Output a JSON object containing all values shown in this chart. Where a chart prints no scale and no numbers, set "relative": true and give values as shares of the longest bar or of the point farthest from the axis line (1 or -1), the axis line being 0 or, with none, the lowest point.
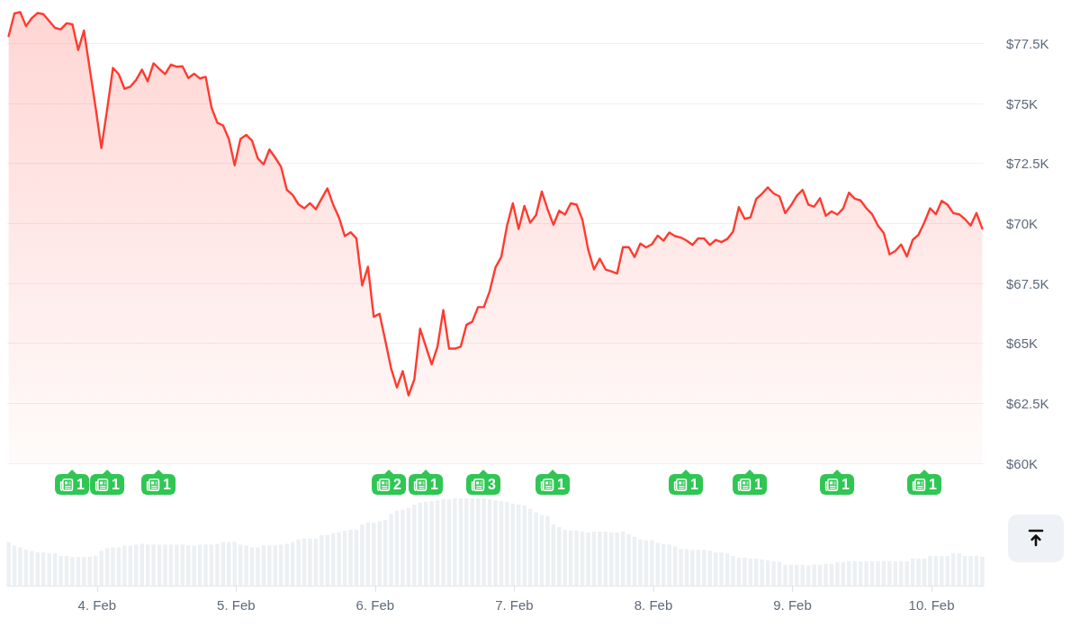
{
  "chart_data": [
    {
      "type": "area",
      "color": "#ff3b30",
      "x": [
        "--02-03T08:45",
        "--02-03T09:45",
        "--02-03T10:45",
        "--02-03T11:45",
        "--02-03T12:45",
        "--02-03T13:45",
        "--02-03T14:45",
        "--02-03T15:45",
        "--02-03T16:45",
        "--02-03T17:45",
        "--02-03T18:45",
        "--02-03T19:45",
        "--02-03T20:45",
        "--02-03T21:45",
        "--02-03T22:45",
        "--02-03T23:45",
        "--02-04T00:45",
        "--02-04T01:45",
        "--02-04T02:45",
        "--02-04T03:45",
        "--02-04T04:45",
        "--02-04T05:45",
        "--02-04T06:45",
        "--02-04T07:45",
        "--02-04T08:45",
        "--02-04T09:45",
        "--02-04T10:45",
        "--02-04T11:45",
        "--02-04T12:45",
        "--02-04T13:45",
        "--02-04T14:45",
        "--02-04T15:45",
        "--02-04T16:45",
        "--02-04T17:45",
        "--02-04T18:45",
        "--02-04T19:45",
        "--02-04T20:45",
        "--02-04T21:45",
        "--02-04T22:45",
        "--02-04T23:45",
        "--02-05T00:45",
        "--02-05T01:45",
        "--02-05T02:45",
        "--02-05T03:45",
        "--02-05T04:45",
        "--02-05T05:45",
        "--02-05T06:45",
        "--02-05T07:45",
        "--02-05T08:45",
        "--02-05T09:45",
        "--02-05T10:45",
        "--02-05T11:45",
        "--02-05T12:45",
        "--02-05T13:45",
        "--02-05T14:45",
        "--02-05T15:45",
        "--02-05T16:45",
        "--02-05T17:45",
        "--02-05T18:45",
        "--02-05T19:45",
        "--02-05T20:45",
        "--02-05T21:45",
        "--02-05T22:45",
        "--02-05T23:45",
        "--02-06T00:45",
        "--02-06T01:45",
        "--02-06T02:45",
        "--02-06T03:45",
        "--02-06T04:45",
        "--02-06T05:45",
        "--02-06T06:45",
        "--02-06T07:45",
        "--02-06T08:45",
        "--02-06T09:45",
        "--02-06T10:45",
        "--02-06T11:45",
        "--02-06T12:45",
        "--02-06T13:45",
        "--02-06T14:45",
        "--02-06T15:45",
        "--02-06T16:45",
        "--02-06T17:45",
        "--02-06T18:45",
        "--02-06T19:45",
        "--02-06T20:45",
        "--02-06T21:45",
        "--02-06T22:45",
        "--02-06T23:45",
        "--02-07T00:45",
        "--02-07T01:45",
        "--02-07T02:45",
        "--02-07T03:45",
        "--02-07T04:45",
        "--02-07T05:45",
        "--02-07T06:45",
        "--02-07T07:45",
        "--02-07T08:45",
        "--02-07T09:45",
        "--02-07T10:45",
        "--02-07T11:45",
        "--02-07T12:45",
        "--02-07T13:45",
        "--02-07T14:45",
        "--02-07T15:45",
        "--02-07T16:45",
        "--02-07T17:45",
        "--02-07T18:45",
        "--02-07T19:45",
        "--02-07T20:45",
        "--02-07T21:45",
        "--02-07T22:45",
        "--02-07T23:45",
        "--02-08T00:45",
        "--02-08T01:45",
        "--02-08T02:45",
        "--02-08T03:45",
        "--02-08T04:45",
        "--02-08T05:45",
        "--02-08T06:45",
        "--02-08T07:45",
        "--02-08T08:45",
        "--02-08T09:45",
        "--02-08T10:45",
        "--02-08T11:45",
        "--02-08T12:45",
        "--02-08T13:45",
        "--02-08T14:45",
        "--02-08T15:45",
        "--02-08T16:45",
        "--02-08T17:45",
        "--02-08T18:45",
        "--02-08T19:45",
        "--02-08T20:45",
        "--02-08T21:45",
        "--02-08T22:45",
        "--02-08T23:45",
        "--02-09T00:45",
        "--02-09T01:45",
        "--02-09T02:45",
        "--02-09T03:45",
        "--02-09T04:45",
        "--02-09T05:45",
        "--02-09T06:45",
        "--02-09T07:45",
        "--02-09T08:45",
        "--02-09T09:45",
        "--02-09T10:45",
        "--02-09T11:45",
        "--02-09T12:45",
        "--02-09T13:45",
        "--02-09T14:45",
        "--02-09T15:45",
        "--02-09T16:45",
        "--02-09T17:45",
        "--02-09T18:45",
        "--02-09T19:45",
        "--02-09T20:45",
        "--02-09T21:45",
        "--02-09T22:45",
        "--02-09T23:45",
        "--02-10T00:45",
        "--02-10T01:45",
        "--02-10T02:45",
        "--02-10T03:45",
        "--02-10T04:45",
        "--02-10T05:45",
        "--02-10T06:45",
        "--02-10T07:45",
        "--02-10T08:45"
      ],
      "values": [
        77810,
        78750,
        78810,
        78220,
        78560,
        78770,
        78720,
        78430,
        78150,
        78090,
        78340,
        78300,
        77230,
        78040,
        76430,
        74840,
        73140,
        74760,
        76480,
        76220,
        75610,
        75700,
        75980,
        76410,
        75920,
        76670,
        76440,
        76220,
        76620,
        76530,
        76550,
        76060,
        76240,
        76040,
        76110,
        74830,
        74200,
        74080,
        73520,
        72420,
        73520,
        73690,
        73450,
        72710,
        72460,
        73080,
        72740,
        72360,
        71400,
        71190,
        70800,
        70630,
        70840,
        70590,
        71030,
        71460,
        70780,
        70250,
        69470,
        69630,
        69380,
        67410,
        68190,
        66110,
        66230,
        65110,
        63950,
        63160,
        63840,
        62830,
        63490,
        65610,
        64860,
        64120,
        64860,
        66390,
        64780,
        64780,
        64860,
        65770,
        65900,
        66510,
        66510,
        67170,
        68160,
        68600,
        69910,
        70840,
        69770,
        70730,
        70030,
        70340,
        71330,
        70590,
        69940,
        70530,
        70370,
        70840,
        70780,
        70160,
        68910,
        68080,
        68530,
        68080,
        68000,
        67910,
        69010,
        69010,
        68600,
        69160,
        69000,
        69130,
        69490,
        69280,
        69620,
        69470,
        69410,
        69280,
        69100,
        69380,
        69370,
        69100,
        69310,
        69220,
        69350,
        69660,
        70680,
        70190,
        70250,
        71020,
        71240,
        71500,
        71250,
        71130,
        70430,
        70750,
        71150,
        71400,
        70780,
        70700,
        71050,
        70320,
        70500,
        70370,
        70620,
        71280,
        71030,
        70960,
        70630,
        70380,
        69910,
        69600,
        68710,
        68850,
        69120,
        68620,
        69310,
        69530,
        70030,
        70630,
        70380,
        70940,
        70780,
        70430,
        70380,
        70180,
        69910,
        70430,
        69780
      ],
      "xlim": [
        "--02-03T08:30",
        "--02-10T09:00"
      ],
      "ylim": [
        60000,
        79200
      ],
      "yticks": [
        {
          "value": 60000,
          "label": "$60K"
        },
        {
          "value": 62500,
          "label": "$62.5K"
        },
        {
          "value": 65000,
          "label": "$65K"
        },
        {
          "value": 67500,
          "label": "$67.5K"
        },
        {
          "value": 70000,
          "label": "$70K"
        },
        {
          "value": 72500,
          "label": "$72.5K"
        },
        {
          "value": 75000,
          "label": "$75K"
        },
        {
          "value": 77500,
          "label": "$77.5K"
        }
      ],
      "grid": "y",
      "tick_labels": "y",
      "annotations": [
        "1",
        "1",
        "1",
        "2",
        "1",
        "3",
        "1",
        "1",
        "1",
        "1",
        "1"
      ]
    },
    {
      "type": "bar",
      "relative": true,
      "color": "#edf0f3",
      "x": [
        "--02-03T08:45",
        "--02-03T09:45",
        "--02-03T10:45",
        "--02-03T11:45",
        "--02-03T12:45",
        "--02-03T13:45",
        "--02-03T14:45",
        "--02-03T15:45",
        "--02-03T16:45",
        "--02-03T17:45",
        "--02-03T18:45",
        "--02-03T19:45",
        "--02-03T20:45",
        "--02-03T21:45",
        "--02-03T22:45",
        "--02-03T23:45",
        "--02-04T00:45",
        "--02-04T01:45",
        "--02-04T02:45",
        "--02-04T03:45",
        "--02-04T04:45",
        "--02-04T05:45",
        "--02-04T06:45",
        "--02-04T07:45",
        "--02-04T08:45",
        "--02-04T09:45",
        "--02-04T10:45",
        "--02-04T11:45",
        "--02-04T12:45",
        "--02-04T13:45",
        "--02-04T14:45",
        "--02-04T15:45",
        "--02-04T16:45",
        "--02-04T17:45",
        "--02-04T18:45",
        "--02-04T19:45",
        "--02-04T20:45",
        "--02-04T21:45",
        "--02-04T22:45",
        "--02-04T23:45",
        "--02-05T00:45",
        "--02-05T01:45",
        "--02-05T02:45",
        "--02-05T03:45",
        "--02-05T04:45",
        "--02-05T05:45",
        "--02-05T06:45",
        "--02-05T07:45",
        "--02-05T08:45",
        "--02-05T09:45",
        "--02-05T10:45",
        "--02-05T11:45",
        "--02-05T12:45",
        "--02-05T13:45",
        "--02-05T14:45",
        "--02-05T15:45",
        "--02-05T16:45",
        "--02-05T17:45",
        "--02-05T18:45",
        "--02-05T19:45",
        "--02-05T20:45",
        "--02-05T21:45",
        "--02-05T22:45",
        "--02-05T23:45",
        "--02-06T00:45",
        "--02-06T01:45",
        "--02-06T02:45",
        "--02-06T03:45",
        "--02-06T04:45",
        "--02-06T05:45",
        "--02-06T06:45",
        "--02-06T07:45",
        "--02-06T08:45",
        "--02-06T09:45",
        "--02-06T10:45",
        "--02-06T11:45",
        "--02-06T12:45",
        "--02-06T13:45",
        "--02-06T14:45",
        "--02-06T15:45",
        "--02-06T16:45",
        "--02-06T17:45",
        "--02-06T18:45",
        "--02-06T19:45",
        "--02-06T20:45",
        "--02-06T21:45",
        "--02-06T22:45",
        "--02-06T23:45",
        "--02-07T00:45",
        "--02-07T01:45",
        "--02-07T02:45",
        "--02-07T03:45",
        "--02-07T04:45",
        "--02-07T05:45",
        "--02-07T06:45",
        "--02-07T07:45",
        "--02-07T08:45",
        "--02-07T09:45",
        "--02-07T10:45",
        "--02-07T11:45",
        "--02-07T12:45",
        "--02-07T13:45",
        "--02-07T14:45",
        "--02-07T15:45",
        "--02-07T16:45",
        "--02-07T17:45",
        "--02-07T18:45",
        "--02-07T19:45",
        "--02-07T20:45",
        "--02-07T21:45",
        "--02-07T22:45",
        "--02-07T23:45",
        "--02-08T00:45",
        "--02-08T01:45",
        "--02-08T02:45",
        "--02-08T03:45",
        "--02-08T04:45",
        "--02-08T05:45",
        "--02-08T06:45",
        "--02-08T07:45",
        "--02-08T08:45",
        "--02-08T09:45",
        "--02-08T10:45",
        "--02-08T11:45",
        "--02-08T12:45",
        "--02-08T13:45",
        "--02-08T14:45",
        "--02-08T15:45",
        "--02-08T16:45",
        "--02-08T17:45",
        "--02-08T18:45",
        "--02-08T19:45",
        "--02-08T20:45",
        "--02-08T21:45",
        "--02-08T22:45",
        "--02-08T23:45",
        "--02-09T00:45",
        "--02-09T01:45",
        "--02-09T02:45",
        "--02-09T03:45",
        "--02-09T04:45",
        "--02-09T05:45",
        "--02-09T06:45",
        "--02-09T07:45",
        "--02-09T08:45",
        "--02-09T09:45",
        "--02-09T10:45",
        "--02-09T11:45",
        "--02-09T12:45",
        "--02-09T13:45",
        "--02-09T14:45",
        "--02-09T15:45",
        "--02-09T16:45",
        "--02-09T17:45",
        "--02-09T18:45",
        "--02-09T19:45",
        "--02-09T20:45",
        "--02-09T21:45",
        "--02-09T22:45",
        "--02-09T23:45",
        "--02-10T00:45",
        "--02-10T01:45",
        "--02-10T02:45",
        "--02-10T03:45",
        "--02-10T04:45",
        "--02-10T05:45",
        "--02-10T06:45",
        "--02-10T07:45",
        "--02-10T08:45"
      ],
      "values": [
        0.5,
        0.46,
        0.44,
        0.41,
        0.4,
        0.38,
        0.38,
        0.37,
        0.37,
        0.34,
        0.34,
        0.33,
        0.33,
        0.33,
        0.33,
        0.34,
        0.4,
        0.43,
        0.44,
        0.44,
        0.46,
        0.46,
        0.47,
        0.48,
        0.47,
        0.47,
        0.47,
        0.47,
        0.47,
        0.47,
        0.47,
        0.46,
        0.46,
        0.47,
        0.47,
        0.47,
        0.48,
        0.5,
        0.5,
        0.5,
        0.47,
        0.46,
        0.44,
        0.44,
        0.46,
        0.46,
        0.46,
        0.47,
        0.48,
        0.5,
        0.53,
        0.54,
        0.54,
        0.54,
        0.58,
        0.58,
        0.6,
        0.61,
        0.63,
        0.64,
        0.64,
        0.7,
        0.72,
        0.72,
        0.74,
        0.75,
        0.82,
        0.86,
        0.87,
        0.89,
        0.93,
        0.95,
        0.96,
        0.97,
        0.98,
        0.99,
        0.99,
        1,
        1,
        1,
        1,
        1,
        1,
        0.99,
        0.98,
        0.97,
        0.96,
        0.94,
        0.93,
        0.92,
        0.88,
        0.84,
        0.81,
        0.8,
        0.7,
        0.67,
        0.64,
        0.63,
        0.63,
        0.62,
        0.61,
        0.62,
        0.62,
        0.62,
        0.61,
        0.61,
        0.62,
        0.59,
        0.56,
        0.53,
        0.52,
        0.52,
        0.49,
        0.48,
        0.47,
        0.45,
        0.42,
        0.42,
        0.41,
        0.41,
        0.41,
        0.4,
        0.38,
        0.38,
        0.37,
        0.34,
        0.32,
        0.32,
        0.31,
        0.31,
        0.3,
        0.29,
        0.28,
        0.27,
        0.24,
        0.24,
        0.24,
        0.24,
        0.23,
        0.24,
        0.24,
        0.25,
        0.25,
        0.27,
        0.27,
        0.28,
        0.28,
        0.28,
        0.28,
        0.28,
        0.28,
        0.28,
        0.28,
        0.28,
        0.28,
        0.28,
        0.31,
        0.31,
        0.31,
        0.34,
        0.34,
        0.34,
        0.34,
        0.37,
        0.37,
        0.34,
        0.34,
        0.34,
        0.33
      ],
      "xlim": [
        "--02-03T08:30",
        "--02-10T09:00"
      ],
      "xticks": [
        {
          "value": "--02-04",
          "label": "4. Feb"
        },
        {
          "value": "--02-05",
          "label": "5. Feb"
        },
        {
          "value": "--02-06",
          "label": "6. Feb"
        },
        {
          "value": "--02-07",
          "label": "7. Feb"
        },
        {
          "value": "--02-08",
          "label": "8. Feb"
        },
        {
          "value": "--02-09",
          "label": "9. Feb"
        },
        {
          "value": "--02-10",
          "label": "10. Feb"
        }
      ]
    }
  ]
}
